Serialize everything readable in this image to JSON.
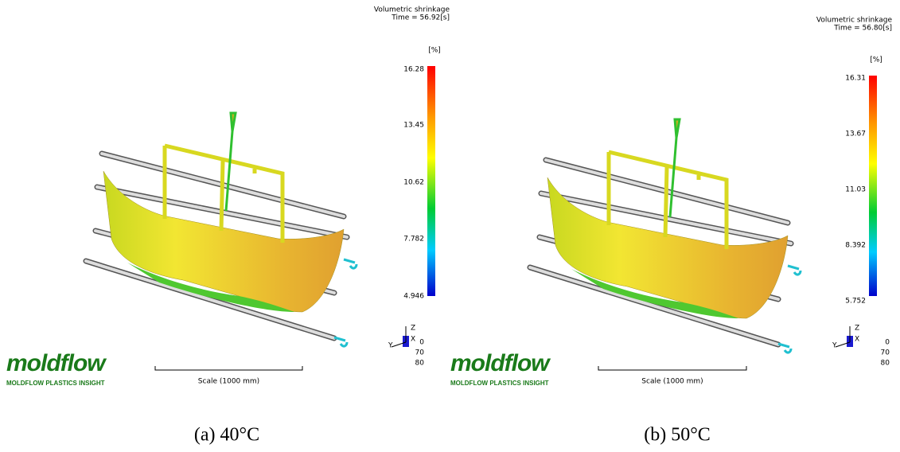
{
  "panels": [
    {
      "title": "Volumetric shrinkage",
      "time": "Time = 56.92[s]",
      "unit": "[%]",
      "scale_labels": [
        "16.28",
        "13.45",
        "10.62",
        "7.782",
        "4.946"
      ],
      "scale_bar": "Scale (1000 mm)",
      "axes": {
        "z": "Z",
        "y": "Y",
        "x": "X"
      },
      "coords": [
        "0",
        "70",
        "80"
      ],
      "logo": "moldflow",
      "logo_subtitle": "MOLDFLOW PLASTICS INSIGHT",
      "caption": "(a) 40°C"
    },
    {
      "title": "Volumetric shrinkage",
      "time": "Time = 56.80[s]",
      "unit": "[%]",
      "scale_labels": [
        "16.31",
        "13.67",
        "11.03",
        "8.392",
        "5.752"
      ],
      "scale_bar": "Scale (1000 mm)",
      "axes": {
        "z": "Z",
        "y": "Y",
        "x": "X"
      },
      "coords": [
        "0",
        "70",
        "80"
      ],
      "logo": "moldflow",
      "logo_subtitle": "MOLDFLOW PLASTICS INSIGHT",
      "caption": "(b) 50°C"
    }
  ]
}
